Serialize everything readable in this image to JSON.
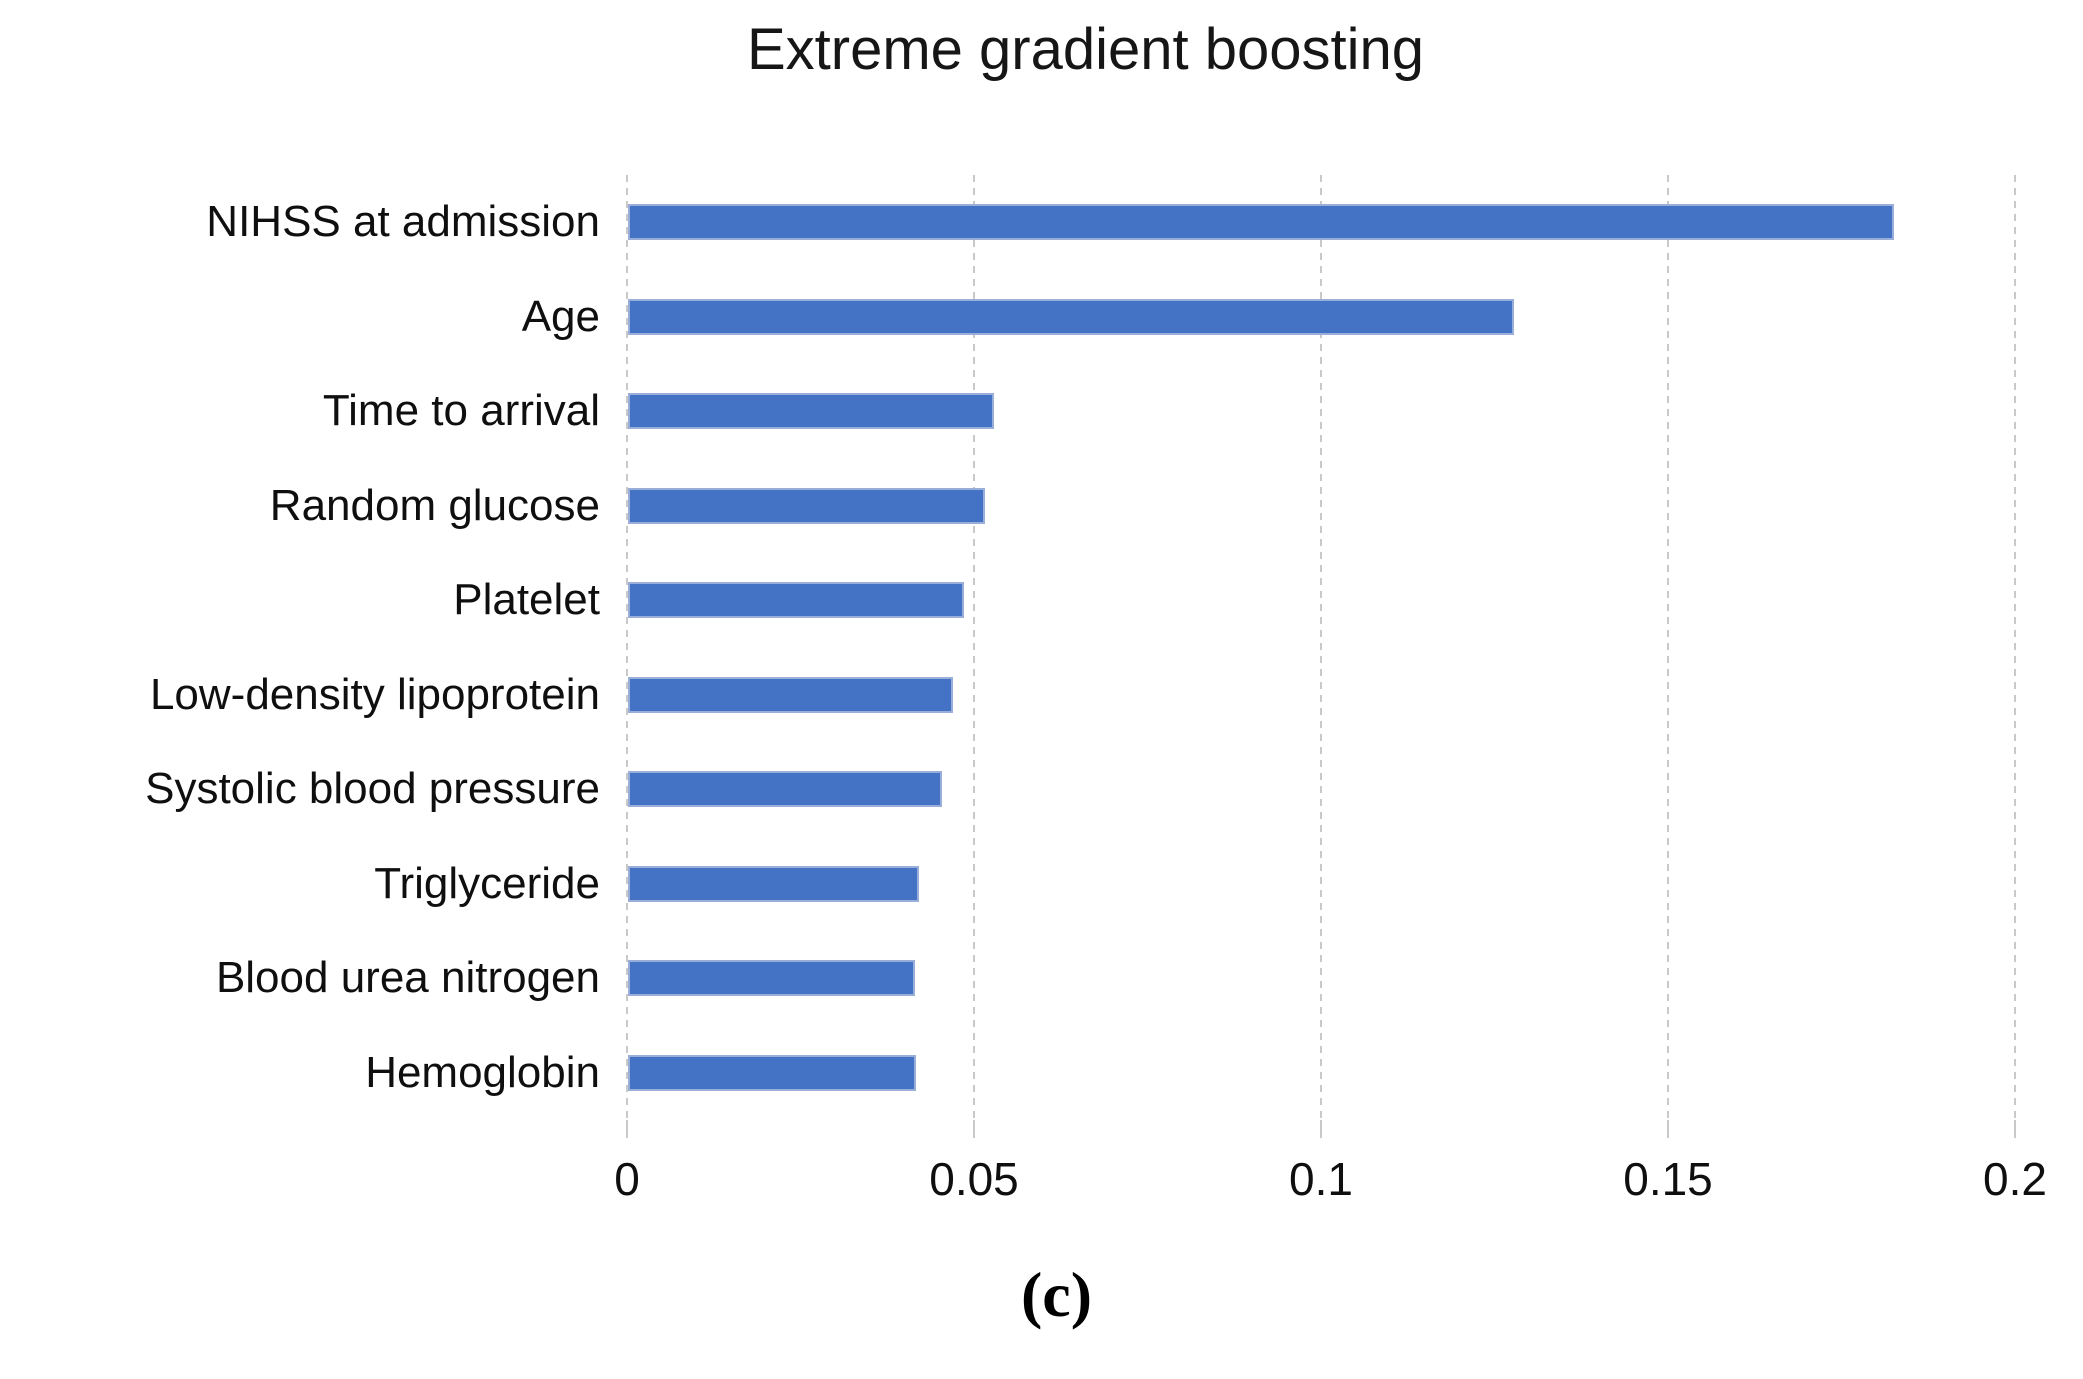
{
  "figure": {
    "caption": "(c)"
  },
  "chart_data": {
    "type": "bar",
    "orientation": "horizontal",
    "title": "Extreme gradient boosting",
    "categories": [
      "NIHSS at admission",
      "Age",
      "Time to arrival",
      "Random glucose",
      "Platelet",
      "Low-density lipoprotein",
      "Systolic blood pressure",
      "Triglyceride",
      "Blood urea nitrogen",
      "Hemoglobin"
    ],
    "values": [
      0.1824,
      0.1277,
      0.0527,
      0.0514,
      0.0484,
      0.0468,
      0.0452,
      0.0419,
      0.0413,
      0.0415
    ],
    "xlabel": "",
    "ylabel": "",
    "xlim": [
      0,
      0.2
    ],
    "xticks": [
      0,
      0.05,
      0.1,
      0.15,
      0.2
    ],
    "xtick_labels": [
      "0",
      "0.05",
      "0.1",
      "0.15",
      "0.2"
    ],
    "grid": true,
    "legend": false,
    "bar_color": "#4472C4",
    "bar_edge_color": "#9AAEDA",
    "gridline_color": "#C9C9C9",
    "text_color": "#121212"
  }
}
